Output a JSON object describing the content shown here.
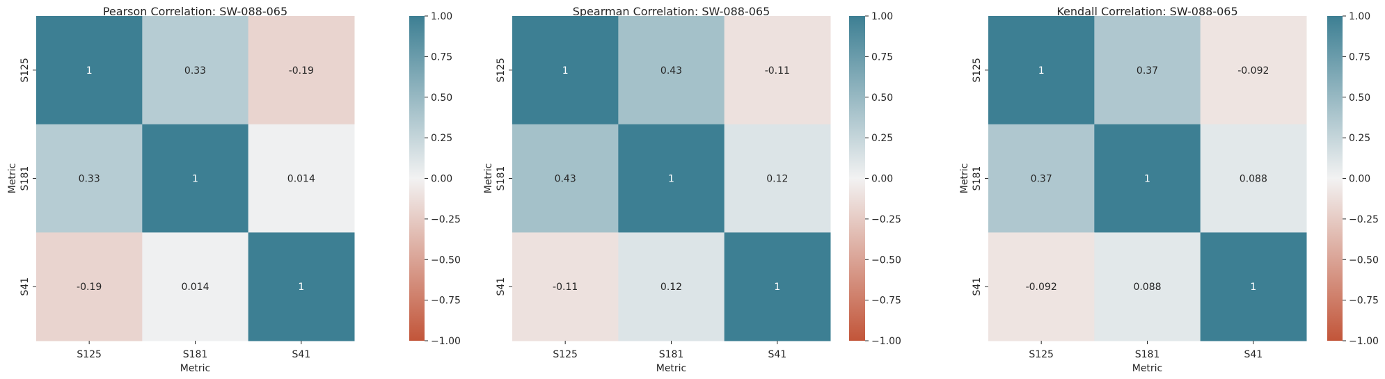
{
  "chart_data": [
    {
      "type": "heatmap",
      "title": "Pearson Correlation: SW-088-065",
      "xlabel": "Metric",
      "ylabel": "Metric",
      "x_categories": [
        "S125",
        "S181",
        "S41"
      ],
      "y_categories": [
        "S125",
        "S181",
        "S41"
      ],
      "values": [
        [
          1,
          0.33,
          -0.19
        ],
        [
          0.33,
          1,
          0.014
        ],
        [
          -0.19,
          0.014,
          1
        ]
      ],
      "annotations": [
        [
          "1",
          "0.33",
          "-0.19"
        ],
        [
          "0.33",
          "1",
          "0.014"
        ],
        [
          "-0.19",
          "0.014",
          "1"
        ]
      ],
      "colorbar": {
        "vmin": -1.0,
        "vmax": 1.0,
        "ticks": [
          "1.00",
          "0.75",
          "0.50",
          "0.25",
          "0.00",
          "−0.25",
          "−0.50",
          "−0.75",
          "−1.00"
        ],
        "tick_values": [
          1.0,
          0.75,
          0.5,
          0.25,
          0.0,
          -0.25,
          -0.5,
          -0.75,
          -1.0
        ]
      }
    },
    {
      "type": "heatmap",
      "title": "Spearman Correlation: SW-088-065",
      "xlabel": "Metric",
      "ylabel": "Metric",
      "x_categories": [
        "S125",
        "S181",
        "S41"
      ],
      "y_categories": [
        "S125",
        "S181",
        "S41"
      ],
      "values": [
        [
          1,
          0.43,
          -0.11
        ],
        [
          0.43,
          1,
          0.12
        ],
        [
          -0.11,
          0.12,
          1
        ]
      ],
      "annotations": [
        [
          "1",
          "0.43",
          "-0.11"
        ],
        [
          "0.43",
          "1",
          "0.12"
        ],
        [
          "-0.11",
          "0.12",
          "1"
        ]
      ],
      "colorbar": {
        "vmin": -1.0,
        "vmax": 1.0,
        "ticks": [
          "1.00",
          "0.75",
          "0.50",
          "0.25",
          "0.00",
          "−0.25",
          "−0.50",
          "−0.75",
          "−1.00"
        ],
        "tick_values": [
          1.0,
          0.75,
          0.5,
          0.25,
          0.0,
          -0.25,
          -0.5,
          -0.75,
          -1.0
        ]
      }
    },
    {
      "type": "heatmap",
      "title": "Kendall Correlation: SW-088-065",
      "xlabel": "Metric",
      "ylabel": "Metric",
      "x_categories": [
        "S125",
        "S181",
        "S41"
      ],
      "y_categories": [
        "S125",
        "S181",
        "S41"
      ],
      "values": [
        [
          1,
          0.37,
          -0.092
        ],
        [
          0.37,
          1,
          0.088
        ],
        [
          -0.092,
          0.088,
          1
        ]
      ],
      "annotations": [
        [
          "1",
          "0.37",
          "-0.092"
        ],
        [
          "0.37",
          "1",
          "0.088"
        ],
        [
          "-0.092",
          "0.088",
          "1"
        ]
      ],
      "colorbar": {
        "vmin": -1.0,
        "vmax": 1.0,
        "ticks": [
          "1.00",
          "0.75",
          "0.50",
          "0.25",
          "0.00",
          "−0.25",
          "−0.50",
          "−0.75",
          "−1.00"
        ],
        "tick_values": [
          1.0,
          0.75,
          0.5,
          0.25,
          0.0,
          -0.25,
          -0.5,
          -0.75,
          -1.0
        ]
      }
    }
  ],
  "colors": {
    "negative": "#c25539",
    "neutral": "#f2f2f2",
    "positive": "#3d7f93",
    "text_dark": "#262626",
    "text_light": "#ffffff"
  }
}
